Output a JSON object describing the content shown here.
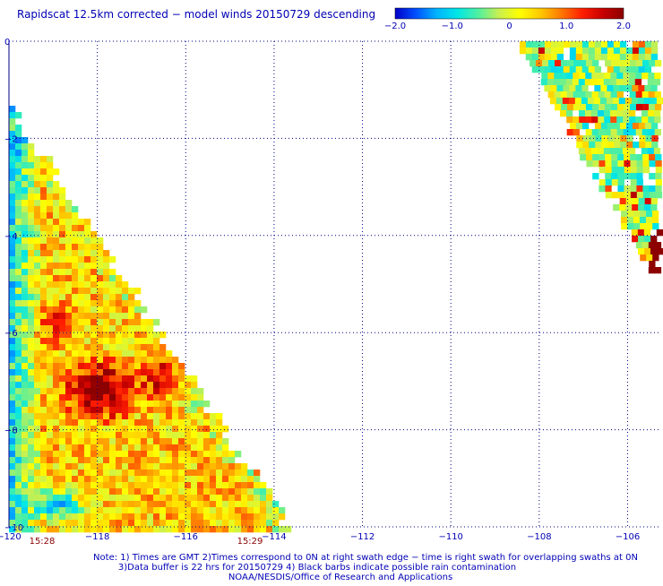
{
  "title": "Rapidscat 12.5km corrected − model winds 20150729 descending",
  "colorbar": {
    "tick_labels": [
      "−2.0",
      "−1.0",
      "0",
      "1.0",
      "2.0"
    ],
    "range": [
      -2.0,
      2.0
    ],
    "colors": [
      "#0000c8",
      "#0050ff",
      "#00b4ff",
      "#00e6e6",
      "#50f0a0",
      "#c8f050",
      "#ffff00",
      "#ffc800",
      "#ff7800",
      "#ff1e00",
      "#c80000",
      "#8c0000"
    ]
  },
  "map_data": {
    "type": "heatmap",
    "x_range": [
      -120,
      -105.3
    ],
    "y_range": [
      -10,
      0
    ],
    "x_ticks": [
      -120,
      -118,
      -116,
      -114,
      -112,
      -110,
      -108,
      -106
    ],
    "x_tick_labels": [
      "−120",
      "−118",
      "−116",
      "−114",
      "−112",
      "−110",
      "−108",
      "−106"
    ],
    "y_ticks": [
      0,
      -2,
      -4,
      -6,
      -8,
      -10
    ],
    "y_tick_labels": [
      "0",
      "−2",
      "−4",
      "−6",
      "−8",
      "−10"
    ],
    "grid": "dotted",
    "swath_times": [
      "15:28",
      "15:29"
    ],
    "swath_time_color": "#8b0000",
    "left_swath": {
      "description": "triangular swath, lower-left",
      "value_pattern": "mostly 0 to +1 (yellow/orange), blue (−1) along left edge, strong positive +2 core near lon -118 lat -7",
      "peak_value": 2.0,
      "peak_location": {
        "lon": -118,
        "lat": -7.1
      }
    },
    "right_swath": {
      "description": "narrow diagonal swath, upper-right",
      "value_pattern": "mostly 0 to −1 (cyan/blue) with scattered positive cells"
    }
  },
  "notes": [
    "Note: 1) Times are GMT 2)Times correspond to 0N at right swath edge − time is right swath for overlapping swaths at 0N",
    "3)Data buffer is 22 hrs for 20150729 4) Black barbs indicate possible rain contamination",
    "NOAA/NESDIS/Office of Research and Applications"
  ]
}
